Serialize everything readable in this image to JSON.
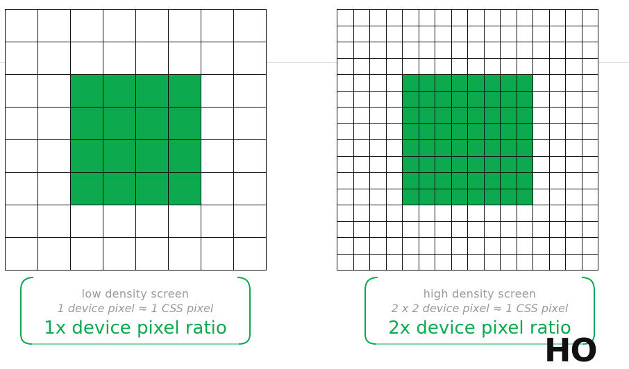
{
  "colors": {
    "accent": "#0ca94f",
    "fill": "#0ca94f",
    "grid_line": "#111111",
    "caption_text": "#9a9a9a"
  },
  "panels": [
    {
      "id": "low",
      "grid": {
        "size": 8,
        "fill_from": 2,
        "fill_to": 5
      },
      "title": "low density screen",
      "equation": "1 device pixel ≈ 1 CSS pixel",
      "ratio": "1x device pixel ratio"
    },
    {
      "id": "high",
      "grid": {
        "size": 16,
        "fill_from": 4,
        "fill_to": 11
      },
      "title": "high density screen",
      "equation": "2 x 2 device pixel ≈ 1 CSS pixel",
      "ratio": "2x device pixel ratio"
    }
  ],
  "corner_logo": "HO"
}
